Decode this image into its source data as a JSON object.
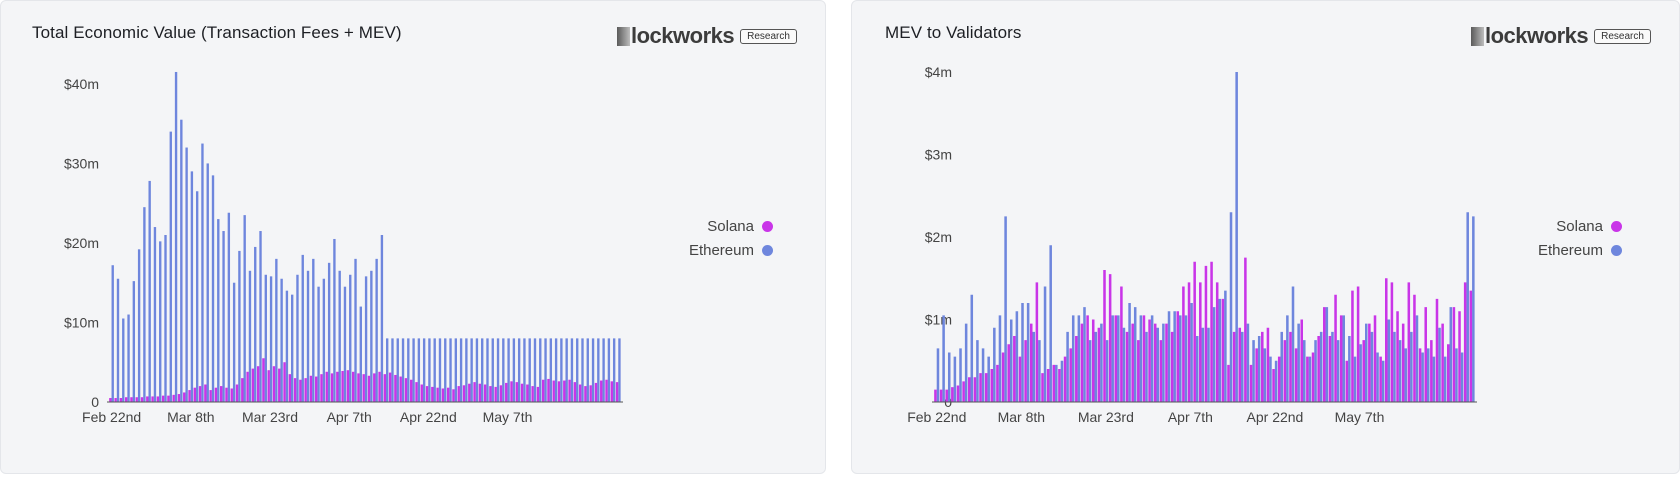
{
  "brand": {
    "name": "lockworks",
    "badge": "Research"
  },
  "colors": {
    "solana": "#c935e8",
    "ethereum": "#6e86dd"
  },
  "chart_data": [
    {
      "type": "bar",
      "title": "Total Economic Value (Transaction Fees + MEV)",
      "xlabel": "",
      "ylabel": "",
      "ylim": [
        0,
        42
      ],
      "yticks": [
        {
          "value": 0,
          "label": "0"
        },
        {
          "value": 10,
          "label": "$10m"
        },
        {
          "value": 20,
          "label": "$20m"
        },
        {
          "value": 30,
          "label": "$30m"
        },
        {
          "value": 40,
          "label": "$40m"
        }
      ],
      "xticks": [
        {
          "index": 0,
          "label": "Feb 22nd"
        },
        {
          "index": 15,
          "label": "Mar 8th"
        },
        {
          "index": 30,
          "label": "Mar 23rd"
        },
        {
          "index": 45,
          "label": "Apr 7th"
        },
        {
          "index": 60,
          "label": "Apr 22nd"
        },
        {
          "index": 75,
          "label": "May 7th"
        }
      ],
      "legend": "right",
      "series": [
        {
          "name": "Solana",
          "values": [
            0.5,
            0.5,
            0.5,
            0.6,
            0.6,
            0.6,
            0.6,
            0.7,
            0.7,
            0.7,
            0.8,
            0.8,
            0.9,
            1.0,
            1.2,
            1.5,
            1.8,
            2.0,
            2.2,
            1.5,
            1.8,
            2.0,
            1.8,
            1.7,
            2.2,
            3.0,
            3.8,
            4.2,
            4.5,
            5.5,
            4.0,
            4.5,
            4.2,
            5.0,
            3.5,
            3.0,
            2.8,
            3.0,
            3.3,
            3.2,
            3.5,
            3.8,
            3.6,
            3.8,
            3.9,
            4.0,
            3.8,
            3.6,
            3.5,
            3.3,
            3.6,
            3.8,
            3.5,
            3.7,
            3.4,
            3.2,
            3.0,
            2.8,
            2.5,
            2.2,
            2.0,
            1.9,
            1.8,
            1.7,
            1.8,
            1.6,
            2.0,
            2.1,
            2.3,
            2.5,
            2.3,
            2.2,
            2.0,
            1.9,
            2.1,
            2.4,
            2.6,
            2.5,
            2.3,
            2.2,
            2.0,
            1.9,
            2.8,
            2.9,
            2.7,
            2.6,
            2.7,
            2.8,
            2.5,
            2.2,
            2.0,
            2.1,
            2.4,
            2.7,
            2.8,
            2.6,
            2.5
          ]
        },
        {
          "name": "Ethereum",
          "values": [
            17.2,
            15.5,
            10.5,
            11.0,
            15.2,
            19.2,
            24.5,
            27.8,
            22.0,
            20.2,
            21.0,
            34.0,
            41.5,
            35.5,
            32.0,
            29.0,
            26.5,
            32.5,
            30.0,
            28.5,
            23.0,
            21.5,
            23.8,
            15.0,
            19.0,
            23.5,
            16.5,
            19.5,
            21.5,
            16.0,
            15.8,
            18.0,
            15.5,
            14.0,
            13.5,
            16.0,
            18.5,
            16.5,
            18.0,
            14.5,
            15.5,
            17.5,
            20.5,
            16.5,
            14.5,
            16.0,
            18.0,
            12.0,
            15.8,
            16.5,
            18.0,
            21.0,
            8.0,
            8.0,
            8.0,
            8.0,
            8.0,
            8.0,
            8.0,
            8.0,
            8.0,
            8.0,
            8.0,
            8.0,
            8.0,
            8.0,
            8.0,
            8.0,
            8.0,
            8.0,
            8.0,
            8.0,
            8.0,
            8.0,
            8.0,
            8.0,
            8.0,
            8.0,
            8.0,
            8.0,
            8.0,
            8.0,
            8.0,
            8.0,
            8.0,
            8.0,
            8.0,
            8.0,
            8.0,
            8.0,
            8.0,
            8.0,
            8.0,
            8.0,
            8.0,
            8.0,
            8.0
          ]
        }
      ]
    },
    {
      "type": "bar",
      "title": "MEV to Validators",
      "xlabel": "",
      "ylabel": "",
      "ylim": [
        0,
        4
      ],
      "yticks": [
        {
          "value": 0,
          "label": "0"
        },
        {
          "value": 1,
          "label": "$1m"
        },
        {
          "value": 2,
          "label": "$2m"
        },
        {
          "value": 3,
          "label": "$3m"
        },
        {
          "value": 4,
          "label": "$4m"
        }
      ],
      "xticks": [
        {
          "index": 0,
          "label": "Feb 22nd"
        },
        {
          "index": 15,
          "label": "Mar 8th"
        },
        {
          "index": 30,
          "label": "Mar 23rd"
        },
        {
          "index": 45,
          "label": "Apr 7th"
        },
        {
          "index": 60,
          "label": "Apr 22nd"
        },
        {
          "index": 75,
          "label": "May 7th"
        }
      ],
      "legend": "right",
      "series": [
        {
          "name": "Solana",
          "values": [
            0.15,
            0.15,
            0.15,
            0.18,
            0.2,
            0.25,
            0.3,
            0.3,
            0.35,
            0.35,
            0.4,
            0.45,
            0.6,
            0.7,
            0.8,
            0.55,
            0.75,
            0.95,
            1.45,
            0.35,
            0.4,
            0.45,
            0.4,
            0.55,
            0.65,
            0.8,
            0.95,
            1.05,
            1.0,
            0.9,
            1.6,
            1.55,
            1.05,
            1.4,
            0.85,
            0.95,
            0.75,
            1.05,
            1.0,
            0.95,
            0.75,
            0.95,
            0.85,
            1.1,
            1.4,
            1.45,
            1.7,
            1.45,
            1.65,
            1.7,
            1.45,
            1.25,
            0.45,
            0.85,
            0.9,
            1.75,
            0.45,
            0.65,
            0.85,
            0.9,
            0.4,
            0.55,
            0.75,
            0.85,
            0.65,
            1.0,
            0.55,
            0.6,
            0.8,
            1.15,
            0.8,
            1.3,
            1.05,
            0.5,
            1.35,
            1.4,
            0.75,
            0.95,
            1.05,
            0.55,
            1.5,
            1.45,
            1.1,
            0.95,
            1.45,
            1.3,
            0.65,
            1.15,
            0.75,
            1.25,
            0.95,
            0.7,
            1.15,
            1.1,
            1.45,
            1.35
          ]
        },
        {
          "name": "Ethereum",
          "values": [
            0.65,
            1.05,
            0.6,
            0.55,
            0.65,
            0.95,
            1.3,
            0.75,
            0.65,
            0.55,
            0.9,
            1.05,
            2.25,
            1.0,
            1.1,
            1.2,
            1.2,
            0.85,
            0.75,
            1.4,
            1.9,
            0.45,
            0.5,
            0.85,
            1.05,
            1.05,
            1.15,
            0.75,
            0.85,
            0.95,
            0.75,
            1.05,
            1.05,
            0.9,
            1.2,
            1.15,
            1.05,
            0.85,
            1.05,
            0.9,
            0.95,
            1.1,
            1.1,
            1.05,
            1.05,
            1.2,
            0.8,
            0.9,
            0.9,
            1.15,
            1.25,
            1.35,
            2.3,
            4.0,
            0.85,
            0.95,
            0.75,
            0.8,
            0.65,
            0.55,
            0.5,
            0.85,
            1.05,
            1.4,
            0.95,
            0.75,
            0.55,
            0.75,
            0.85,
            1.15,
            0.85,
            0.75,
            1.05,
            0.8,
            0.55,
            0.7,
            0.95,
            0.85,
            0.6,
            0.5,
            1.0,
            0.85,
            0.75,
            0.65,
            0.85,
            1.05,
            0.6,
            0.65,
            0.55,
            0.9,
            0.55,
            1.15,
            0.65,
            0.6,
            2.3,
            2.25
          ]
        }
      ]
    }
  ]
}
